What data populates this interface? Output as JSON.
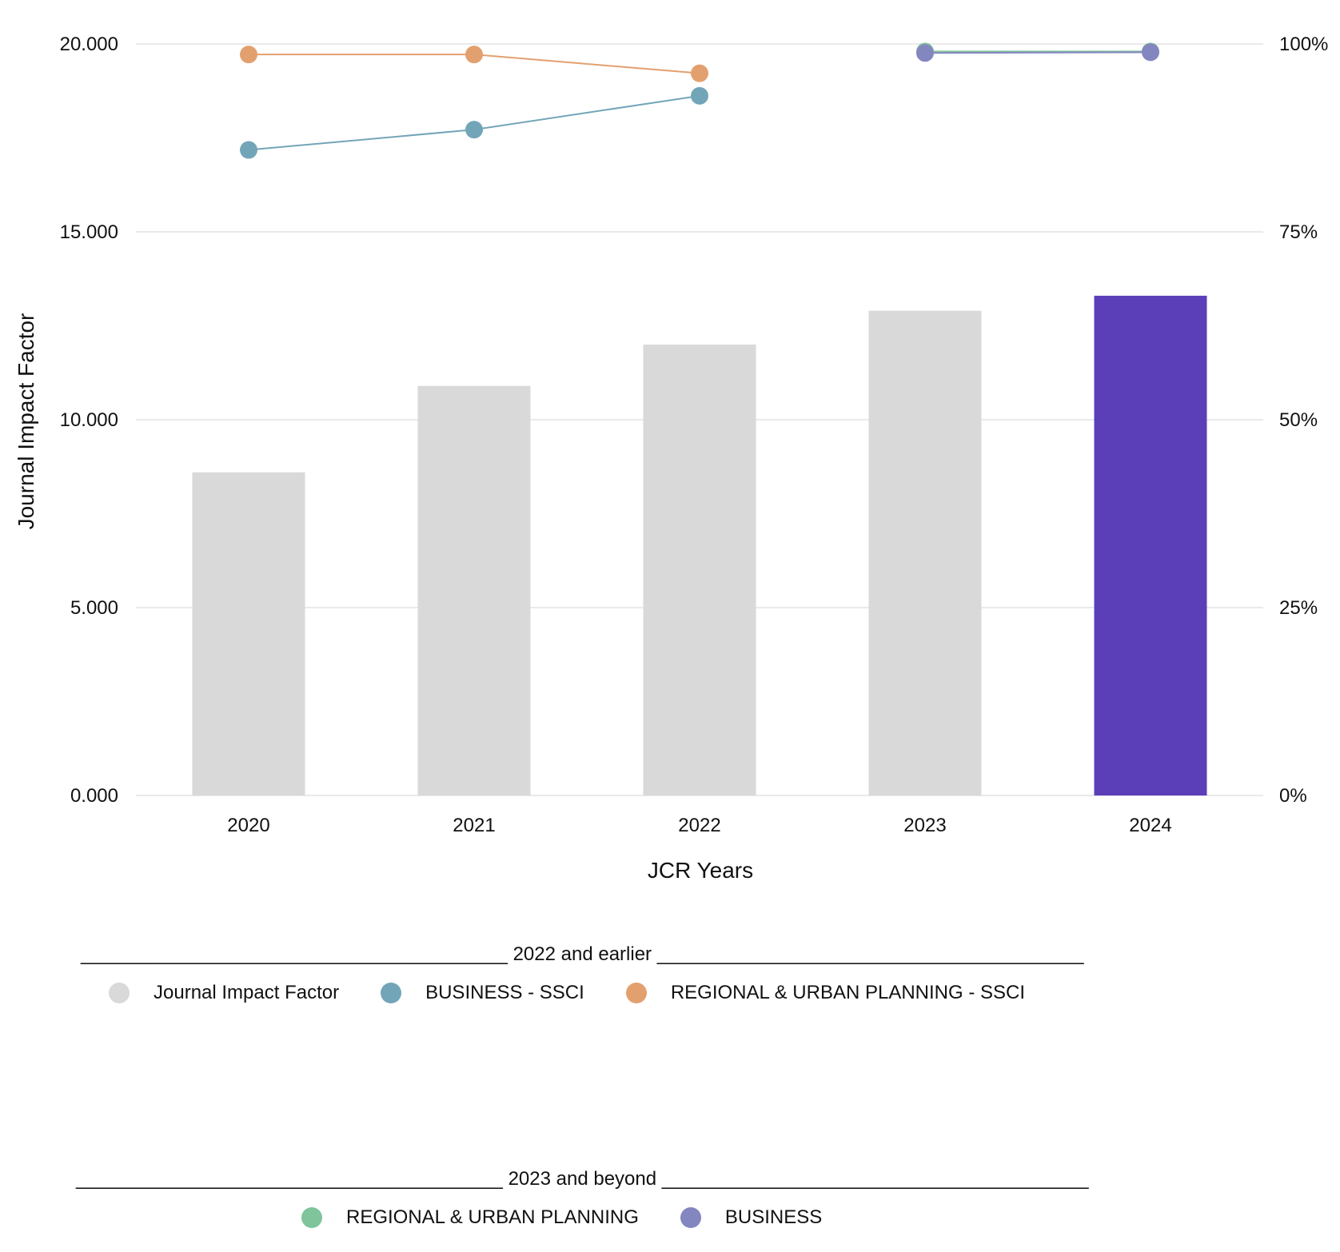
{
  "chart_data": {
    "type": "bar",
    "categories": [
      "2020",
      "2021",
      "2022",
      "2023",
      "2024"
    ],
    "xlabel": "JCR Years",
    "ylabel": "Journal Impact Factor",
    "ylim": [
      0,
      20
    ],
    "y_ticks": [
      "0.000",
      "5.000",
      "10.000",
      "15.000",
      "20.000"
    ],
    "y2lim": [
      0,
      100
    ],
    "y2_ticks": [
      "0%",
      "25%",
      "50%",
      "75%",
      "100%"
    ],
    "grid": true,
    "bars": {
      "name": "Journal Impact Factor",
      "values": [
        8.6,
        10.9,
        12.0,
        12.9,
        13.3
      ],
      "colors": [
        "#d9d9d9",
        "#d9d9d9",
        "#d9d9d9",
        "#d9d9d9",
        "#5a3fb8"
      ]
    },
    "series": [
      {
        "name": "BUSINESS - SSCI",
        "axis": "right",
        "color": "#73a5b8",
        "values": [
          85.9,
          88.6,
          93.1,
          null,
          null
        ]
      },
      {
        "name": "REGIONAL & URBAN PLANNING - SSCI",
        "axis": "right",
        "color": "#e3a06f",
        "values": [
          98.6,
          98.6,
          96.1,
          null,
          null
        ]
      },
      {
        "name": "REGIONAL & URBAN PLANNING",
        "axis": "right",
        "color": "#7fc49a",
        "values": [
          null,
          null,
          null,
          99.0,
          99.0
        ]
      },
      {
        "name": "BUSINESS",
        "axis": "right",
        "color": "#8486c0",
        "values": [
          null,
          null,
          null,
          98.8,
          98.9
        ]
      }
    ]
  },
  "legend": {
    "group1": {
      "heading": "________________________________________ 2022 and earlier ________________________________________",
      "items": [
        {
          "label": "Journal Impact Factor",
          "color": "#d9d9d9"
        },
        {
          "label": "BUSINESS - SSCI",
          "color": "#73a5b8"
        },
        {
          "label": "REGIONAL & URBAN PLANNING - SSCI",
          "color": "#e3a06f"
        }
      ]
    },
    "group2": {
      "heading": "________________________________________ 2023 and beyond ________________________________________",
      "items": [
        {
          "label": "REGIONAL & URBAN PLANNING",
          "color": "#7fc49a"
        },
        {
          "label": "BUSINESS",
          "color": "#8486c0"
        }
      ]
    }
  }
}
